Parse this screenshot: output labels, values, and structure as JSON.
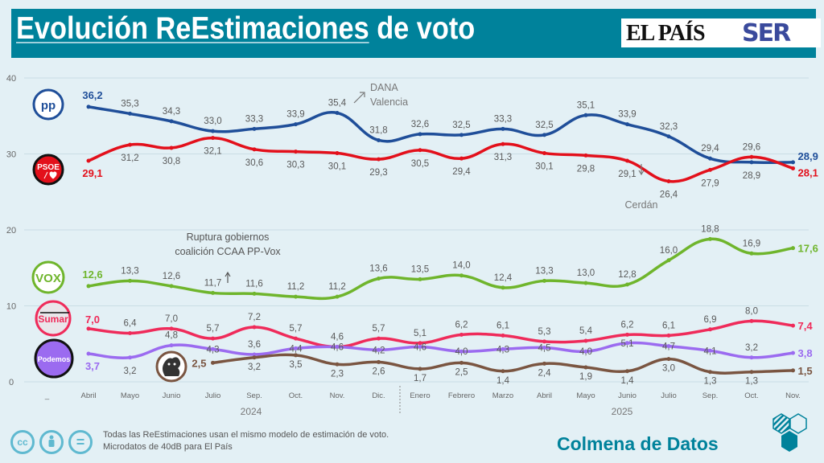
{
  "header": {
    "title_underlined": "Evolución ReEstimaciones",
    "title_rest": " de voto",
    "logo_1": "EL PAÍS",
    "logo_2": "SER"
  },
  "colors": {
    "title_bar": "#00829b",
    "background": "#e3f0f5",
    "PP": "#1f4e99",
    "PSOE": "#e3101b",
    "Vox": "#6fb52c",
    "Sumar": "#ef2b5a",
    "Podemos": "#9b6bf0",
    "SALF": "#7a5541",
    "label": "#595959"
  },
  "chart_data": {
    "type": "line",
    "categories": [
      "_",
      "Abril",
      "Mayo",
      "Junio",
      "Julio",
      "Sep.",
      "Oct.",
      "Nov.",
      "Dic.",
      "Enero",
      "Febrero",
      "Marzo",
      "Abril",
      "Mayo",
      "Junio",
      "Julio",
      "Sep.",
      "Oct.",
      "Nov."
    ],
    "years": [
      {
        "label": "2024"
      },
      {
        "label": "2025"
      }
    ],
    "ylim": [
      0,
      40
    ],
    "yticks": [
      "0",
      "10",
      "20",
      "30",
      "40"
    ],
    "grid": true,
    "series": [
      {
        "name": "PP",
        "logo": "PP",
        "values": [
          null,
          36.2,
          35.3,
          34.3,
          33.0,
          33.3,
          33.9,
          35.4,
          31.8,
          32.6,
          32.5,
          33.3,
          32.5,
          35.1,
          33.9,
          32.3,
          29.4,
          28.9,
          28.9
        ],
        "labels": [
          "",
          "36,2",
          "35,3",
          "34,3",
          "33,0",
          "33,3",
          "33,9",
          "35,4",
          "31,8",
          "32,6",
          "32,5",
          "33,3",
          "32,5",
          "35,1",
          "33,9",
          "32,3",
          "29,4",
          "28,9",
          "28,9"
        ]
      },
      {
        "name": "PSOE",
        "logo": "PSOE",
        "values": [
          null,
          29.1,
          31.2,
          30.8,
          32.1,
          30.6,
          30.3,
          30.1,
          29.3,
          30.5,
          29.4,
          31.3,
          30.1,
          29.8,
          29.1,
          26.4,
          27.9,
          29.6,
          28.1
        ],
        "labels": [
          "",
          "29,1",
          "31,2",
          "30,8",
          "32,1",
          "30,6",
          "30,3",
          "30,1",
          "29,3",
          "30,5",
          "29,4",
          "31,3",
          "30,1",
          "29,8",
          "29,1",
          "26,4",
          "27,9",
          "29,6",
          "28,1"
        ]
      },
      {
        "name": "Vox",
        "logo": "VOX",
        "values": [
          null,
          12.6,
          13.3,
          12.6,
          11.7,
          11.6,
          11.2,
          11.2,
          13.6,
          13.5,
          14.0,
          12.4,
          13.3,
          13.0,
          12.8,
          16.0,
          18.8,
          16.9,
          17.6
        ],
        "labels": [
          "",
          "12,6",
          "13,3",
          "12,6",
          "11,7",
          "11,6",
          "11,2",
          "11,2",
          "13,6",
          "13,5",
          "14,0",
          "12,4",
          "13,3",
          "13,0",
          "12,8",
          "16,0",
          "18,8",
          "16,9",
          "17,6"
        ]
      },
      {
        "name": "Sumar",
        "logo": "Sumar",
        "values": [
          null,
          7.0,
          6.4,
          7.0,
          5.7,
          7.2,
          5.7,
          4.6,
          5.7,
          5.1,
          6.2,
          6.1,
          5.3,
          5.4,
          6.2,
          6.1,
          6.9,
          8.0,
          7.4
        ],
        "labels": [
          "",
          "7,0",
          "6,4",
          "7,0",
          "5,7",
          "7,2",
          "5,7",
          "4,6",
          "5,7",
          "5,1",
          "6,2",
          "6,1",
          "5,3",
          "5,4",
          "6,2",
          "6,1",
          "6,9",
          "8,0",
          "7,4"
        ]
      },
      {
        "name": "Podemos",
        "logo": "Podemos",
        "values": [
          null,
          3.7,
          3.2,
          4.8,
          4.3,
          3.6,
          4.4,
          4.6,
          4.2,
          4.6,
          4.0,
          4.3,
          4.5,
          4.0,
          5.1,
          4.7,
          4.1,
          3.2,
          3.8
        ],
        "labels": [
          "",
          "3,7",
          "3,2",
          "4,8",
          "4,3",
          "3,6",
          "4,4",
          "4,6",
          "4,2",
          "4,6",
          "4,0",
          "4,3",
          "4,5",
          "4,0",
          "5,1",
          "4,7",
          "4,1",
          "3,2",
          "3,8"
        ]
      },
      {
        "name": "SALF",
        "logo": "",
        "values": [
          null,
          null,
          null,
          null,
          2.5,
          3.2,
          3.5,
          2.3,
          2.6,
          1.7,
          2.5,
          1.4,
          2.4,
          1.9,
          1.4,
          3.0,
          1.3,
          1.3,
          1.5
        ],
        "labels": [
          "",
          "",
          "",
          "",
          "2,5",
          "3,2",
          "3,5",
          "2,3",
          "2,6",
          "1,7",
          "2,5",
          "1,4",
          "2,4",
          "1,9",
          "1,4",
          "3,0",
          "1,3",
          "1,3",
          "1,5"
        ]
      }
    ],
    "annotations": [
      {
        "text_1": "DANA",
        "text_2": "Valencia"
      },
      {
        "text_1": "Cerdán"
      },
      {
        "text_1": "Ruptura gobiernos",
        "text_2": "coalición CCAA PP-Vox"
      }
    ]
  },
  "footer": {
    "note_1": "Todas las ReEstimaciones usan el mismo modelo de estimación de voto.",
    "note_2": "Microdatos de 40dB para El País",
    "brand": "Colmena de Datos",
    "cc_icons": [
      "cc-icon",
      "by-icon",
      "nd-icon"
    ],
    "cc_1": "cc",
    "cc_3": "="
  }
}
